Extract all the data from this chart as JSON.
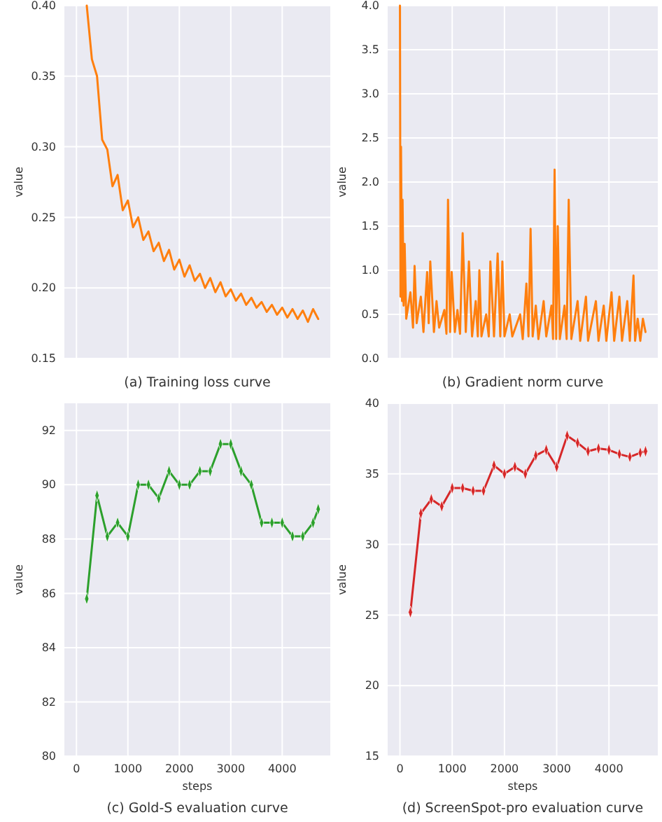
{
  "chart_data": [
    {
      "type": "line",
      "title": "(a) Training loss curve",
      "ylabel": "value",
      "grid": true,
      "tick_labels": "y",
      "xlim": [
        -235,
        4935
      ],
      "ylim": [
        0.15,
        0.4
      ],
      "xticks": [
        0,
        1000,
        2000,
        3000,
        4000
      ],
      "yticks": [
        0.15,
        {
          "value": 0.2,
          "label": "0.20"
        },
        0.25,
        {
          "value": 0.3,
          "label": "0.30"
        },
        0.35,
        {
          "value": 0.4,
          "label": "0.40"
        }
      ],
      "x": [
        200,
        300,
        400,
        500,
        600,
        700,
        800,
        900,
        1000,
        1100,
        1200,
        1300,
        1400,
        1500,
        1600,
        1700,
        1800,
        1900,
        2000,
        2100,
        2200,
        2300,
        2400,
        2500,
        2600,
        2700,
        2800,
        2900,
        3000,
        3100,
        3200,
        3300,
        3400,
        3500,
        3600,
        3700,
        3800,
        3900,
        4000,
        4100,
        4200,
        4300,
        4400,
        4500,
        4600,
        4700
      ],
      "series": [
        {
          "color": "#ff7f0e",
          "values": [
            0.4,
            0.362,
            0.35,
            0.305,
            0.298,
            0.272,
            0.28,
            0.255,
            0.262,
            0.243,
            0.25,
            0.234,
            0.24,
            0.226,
            0.232,
            0.219,
            0.227,
            0.213,
            0.22,
            0.208,
            0.216,
            0.205,
            0.21,
            0.2,
            0.207,
            0.197,
            0.204,
            0.194,
            0.199,
            0.191,
            0.196,
            0.188,
            0.193,
            0.186,
            0.19,
            0.183,
            0.188,
            0.181,
            0.186,
            0.179,
            0.185,
            0.178,
            0.184,
            0.176,
            0.185,
            0.178
          ]
        }
      ]
    },
    {
      "type": "line",
      "title": "(b) Gradient norm curve",
      "ylabel": "value",
      "grid": true,
      "tick_labels": "y",
      "xlim": [
        -235,
        4935
      ],
      "ylim": [
        0,
        4
      ],
      "xticks": [
        0,
        1000,
        2000,
        3000,
        4000
      ],
      "yticks": [
        {
          "value": 0,
          "label": "0.0"
        },
        {
          "value": 0.5,
          "label": "0.5"
        },
        {
          "value": 1,
          "label": "1.0"
        },
        {
          "value": 1.5,
          "label": "1.5"
        },
        {
          "value": 2,
          "label": "2.0"
        },
        {
          "value": 2.5,
          "label": "2.5"
        },
        {
          "value": 3,
          "label": "3.0"
        },
        {
          "value": 3.5,
          "label": "3.5"
        },
        {
          "value": 4,
          "label": "4.0"
        }
      ],
      "x": [
        0,
        10,
        20,
        40,
        50,
        70,
        90,
        120,
        200,
        250,
        280,
        320,
        400,
        450,
        520,
        550,
        580,
        650,
        700,
        750,
        850,
        890,
        920,
        960,
        990,
        1050,
        1100,
        1150,
        1200,
        1260,
        1320,
        1380,
        1450,
        1490,
        1520,
        1560,
        1650,
        1700,
        1730,
        1800,
        1870,
        1920,
        1960,
        2000,
        2100,
        2150,
        2300,
        2350,
        2420,
        2460,
        2500,
        2540,
        2600,
        2650,
        2750,
        2800,
        2900,
        2930,
        2960,
        2990,
        3020,
        3060,
        3150,
        3190,
        3230,
        3280,
        3400,
        3450,
        3560,
        3600,
        3750,
        3800,
        3900,
        3950,
        4050,
        4100,
        4200,
        4250,
        4350,
        4400,
        4470,
        4500,
        4550,
        4600,
        4650,
        4700
      ],
      "series": [
        {
          "color": "#ff7f0e",
          "values": [
            4.0,
            0.7,
            2.4,
            0.65,
            1.8,
            0.6,
            1.3,
            0.45,
            0.75,
            0.35,
            1.05,
            0.4,
            0.7,
            0.3,
            0.98,
            0.4,
            1.1,
            0.3,
            0.65,
            0.35,
            0.55,
            0.28,
            1.8,
            0.3,
            0.98,
            0.3,
            0.55,
            0.28,
            1.42,
            0.3,
            1.1,
            0.25,
            0.65,
            0.25,
            1.0,
            0.25,
            0.5,
            0.25,
            1.1,
            0.25,
            1.19,
            0.25,
            1.1,
            0.25,
            0.5,
            0.25,
            0.5,
            0.22,
            0.85,
            0.25,
            1.47,
            0.25,
            0.6,
            0.22,
            0.65,
            0.25,
            0.6,
            0.22,
            2.14,
            0.22,
            1.5,
            0.22,
            0.6,
            0.22,
            1.8,
            0.22,
            0.65,
            0.2,
            0.7,
            0.2,
            0.65,
            0.2,
            0.6,
            0.2,
            0.75,
            0.2,
            0.7,
            0.2,
            0.65,
            0.2,
            0.94,
            0.2,
            0.45,
            0.2,
            0.45,
            0.3
          ]
        }
      ]
    },
    {
      "type": "line",
      "title": "(c) Gold-S evaluation curve",
      "xlabel": "steps",
      "ylabel": "value",
      "grid": true,
      "marker": "diamond",
      "xlim": [
        -235,
        4935
      ],
      "ylim": [
        80,
        93
      ],
      "xticks": [
        0,
        1000,
        2000,
        3000,
        4000
      ],
      "yticks": [
        80,
        82,
        84,
        86,
        88,
        90,
        92
      ],
      "x": [
        200,
        400,
        600,
        800,
        1000,
        1200,
        1400,
        1600,
        1800,
        2000,
        2200,
        2400,
        2600,
        2800,
        3000,
        3200,
        3400,
        3600,
        3800,
        4000,
        4200,
        4400,
        4600,
        4700
      ],
      "series": [
        {
          "color": "#2ca02c",
          "values": [
            85.8,
            89.6,
            88.1,
            88.6,
            88.1,
            90.0,
            90.0,
            89.5,
            90.5,
            90.0,
            90.0,
            90.5,
            90.5,
            91.5,
            91.5,
            90.5,
            90.0,
            88.6,
            88.6,
            88.6,
            88.1,
            88.1,
            88.6,
            89.1
          ]
        }
      ]
    },
    {
      "type": "line",
      "title": "(d) ScreenSpot-pro evaluation curve",
      "xlabel": "steps",
      "ylabel": "value",
      "grid": true,
      "marker": "diamond",
      "xlim": [
        -235,
        4935
      ],
      "ylim": [
        15,
        40
      ],
      "xticks": [
        0,
        1000,
        2000,
        3000,
        4000
      ],
      "yticks": [
        15,
        20,
        25,
        30,
        35,
        40
      ],
      "x": [
        200,
        400,
        600,
        800,
        1000,
        1200,
        1400,
        1600,
        1800,
        2000,
        2200,
        2400,
        2600,
        2800,
        3000,
        3200,
        3400,
        3600,
        3800,
        4000,
        4200,
        4400,
        4600,
        4700
      ],
      "series": [
        {
          "color": "#d62728",
          "values": [
            25.2,
            32.2,
            33.2,
            32.7,
            34.0,
            34.0,
            33.8,
            33.8,
            35.6,
            35.0,
            35.5,
            35.0,
            36.3,
            36.7,
            35.5,
            37.7,
            37.2,
            36.6,
            36.8,
            36.7,
            36.4,
            36.2,
            36.5,
            36.6
          ]
        }
      ]
    }
  ]
}
